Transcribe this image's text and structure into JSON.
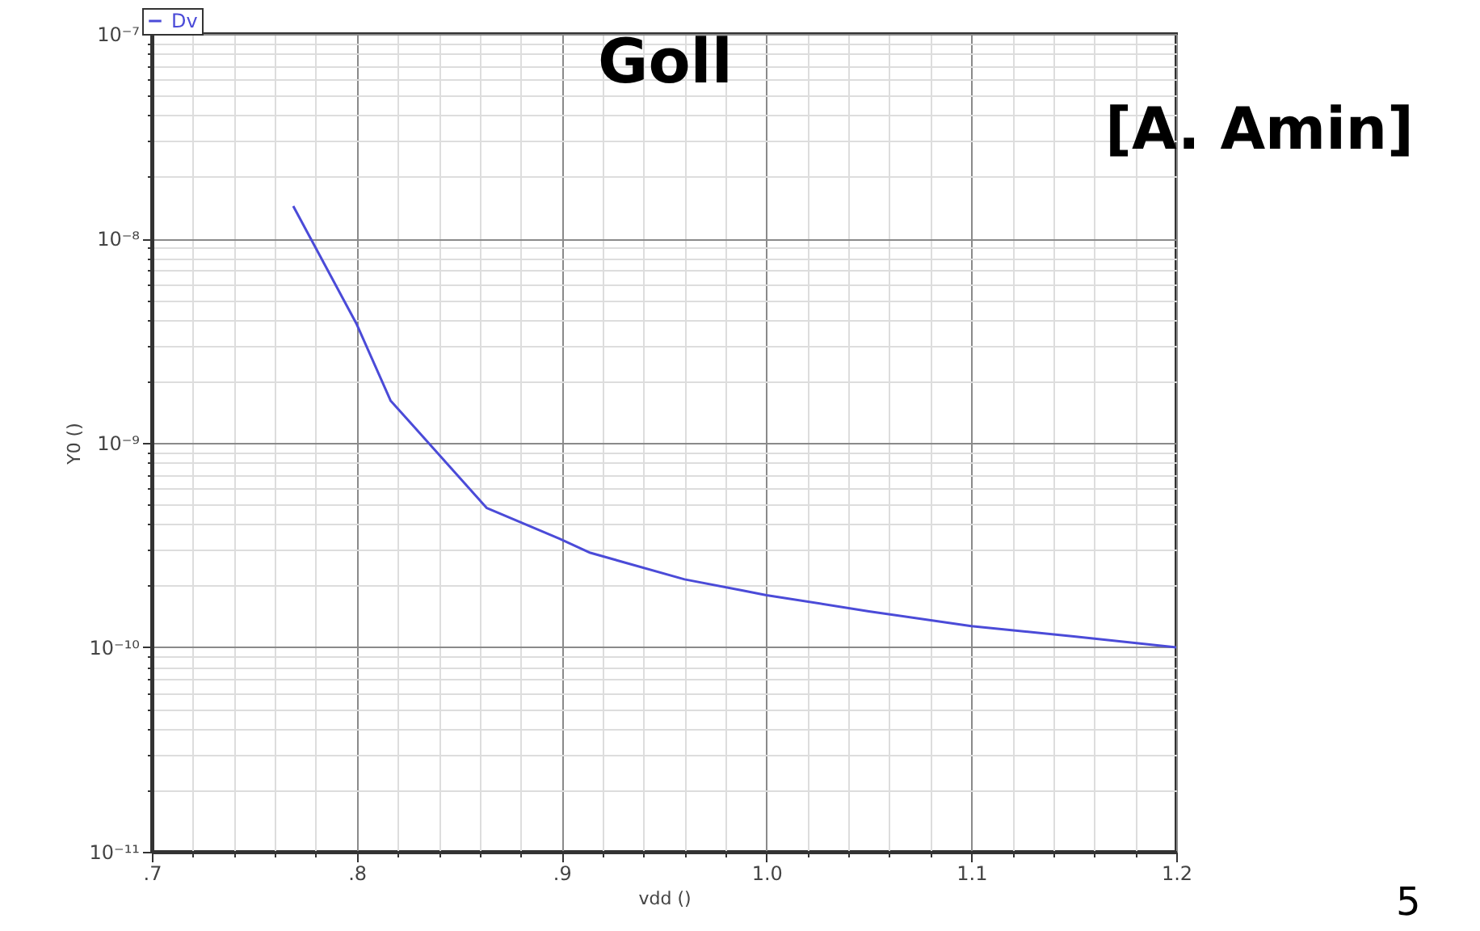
{
  "chart_data": {
    "type": "line",
    "title": "Goll",
    "xlabel": "vdd ()",
    "ylabel": "Y0 ()",
    "annotations": [
      "[A. Amin]",
      "5"
    ],
    "series": [
      {
        "name": "Dv",
        "color": "#4b4bd8",
        "x": [
          0.769,
          0.8,
          0.8165,
          0.8635,
          0.899,
          0.914,
          0.96,
          0.988,
          1.0,
          1.05,
          1.1,
          1.15,
          1.2
        ],
        "values": [
          1.44e-08,
          3.8e-09,
          1.61e-09,
          4.8e-10,
          3.4e-10,
          2.9e-10,
          2.15e-10,
          1.9e-10,
          1.8e-10,
          1.5e-10,
          1.27e-10,
          1.13e-10,
          1e-10
        ]
      }
    ],
    "log": "y",
    "xlim": [
      0.7,
      1.2
    ],
    "ylim": [
      1e-11,
      1e-07
    ],
    "xticks": [
      {
        "value": 0.7,
        "label": ".7"
      },
      {
        "value": 0.72,
        "label": null
      },
      {
        "value": 0.74,
        "label": null
      },
      {
        "value": 0.76,
        "label": null
      },
      {
        "value": 0.78,
        "label": null
      },
      {
        "value": 0.8,
        "label": ".8"
      },
      {
        "value": 0.82,
        "label": null
      },
      {
        "value": 0.84,
        "label": null
      },
      {
        "value": 0.86,
        "label": null
      },
      {
        "value": 0.88,
        "label": null
      },
      {
        "value": 0.9,
        "label": ".9"
      },
      {
        "value": 0.92,
        "label": null
      },
      {
        "value": 0.94,
        "label": null
      },
      {
        "value": 0.96,
        "label": null
      },
      {
        "value": 0.98,
        "label": null
      },
      {
        "value": 1.0,
        "label": "1.0"
      },
      {
        "value": 1.02,
        "label": null
      },
      {
        "value": 1.04,
        "label": null
      },
      {
        "value": 1.06,
        "label": null
      },
      {
        "value": 1.08,
        "label": null
      },
      {
        "value": 1.1,
        "label": "1.1"
      },
      {
        "value": 1.12,
        "label": null
      },
      {
        "value": 1.14,
        "label": null
      },
      {
        "value": 1.16,
        "label": null
      },
      {
        "value": 1.18,
        "label": null
      },
      {
        "value": 1.2,
        "label": "1.2"
      }
    ],
    "yticks": [
      {
        "value": 1e-11,
        "label": "10⁻¹¹"
      },
      {
        "value": 2e-11,
        "label": null
      },
      {
        "value": 3e-11,
        "label": null
      },
      {
        "value": 4e-11,
        "label": null
      },
      {
        "value": 5e-11,
        "label": null
      },
      {
        "value": 6e-11,
        "label": null
      },
      {
        "value": 7e-11,
        "label": null
      },
      {
        "value": 8e-11,
        "label": null
      },
      {
        "value": 9e-11,
        "label": null
      },
      {
        "value": 1e-10,
        "label": "10⁻¹⁰"
      },
      {
        "value": 2e-10,
        "label": null
      },
      {
        "value": 3e-10,
        "label": null
      },
      {
        "value": 4e-10,
        "label": null
      },
      {
        "value": 5e-10,
        "label": null
      },
      {
        "value": 6e-10,
        "label": null
      },
      {
        "value": 7e-10,
        "label": null
      },
      {
        "value": 8e-10,
        "label": null
      },
      {
        "value": 9e-10,
        "label": null
      },
      {
        "value": 1e-09,
        "label": "10⁻⁹"
      },
      {
        "value": 2e-09,
        "label": null
      },
      {
        "value": 3e-09,
        "label": null
      },
      {
        "value": 4e-09,
        "label": null
      },
      {
        "value": 5e-09,
        "label": null
      },
      {
        "value": 6e-09,
        "label": null
      },
      {
        "value": 7e-09,
        "label": null
      },
      {
        "value": 8e-09,
        "label": null
      },
      {
        "value": 9e-09,
        "label": null
      },
      {
        "value": 1e-08,
        "label": "10⁻⁸"
      },
      {
        "value": 2e-08,
        "label": null
      },
      {
        "value": 3e-08,
        "label": null
      },
      {
        "value": 4e-08,
        "label": null
      },
      {
        "value": 5e-08,
        "label": null
      },
      {
        "value": 6e-08,
        "label": null
      },
      {
        "value": 7e-08,
        "label": null
      },
      {
        "value": 8e-08,
        "label": null
      },
      {
        "value": 9e-08,
        "label": null
      },
      {
        "value": 1e-07,
        "label": "10⁻⁷"
      }
    ],
    "grid": true,
    "legend": "top left",
    "marker": "none",
    "line_style": "solid"
  }
}
